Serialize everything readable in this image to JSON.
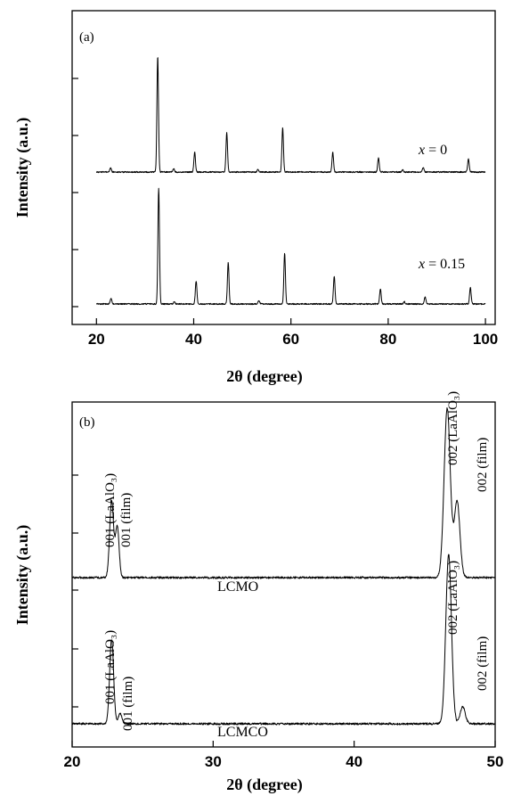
{
  "chart_data": [
    {
      "panel_label": "(a)",
      "type": "line",
      "xlabel": "2θ (degree)",
      "ylabel": "Intensity (a.u.)",
      "xlim": [
        15,
        102
      ],
      "x_ticks": [
        "20",
        "40",
        "60",
        "80",
        "100"
      ],
      "series": [
        {
          "name": "x = 0",
          "label_prefix": "x",
          "label_value": " = 0",
          "peaks_2theta": [
            22.9,
            32.6,
            35.9,
            40.2,
            46.8,
            53.2,
            58.3,
            68.6,
            78.0,
            83.0,
            87.2,
            96.5
          ],
          "peaks_rel_intensity": [
            4,
            100,
            3,
            17,
            34,
            2,
            38,
            17,
            12,
            2,
            4,
            11
          ]
        },
        {
          "name": "x = 0.15",
          "label_prefix": "x",
          "label_value": " = 0.15",
          "peaks_2theta": [
            23.0,
            32.8,
            36.0,
            40.5,
            47.1,
            53.4,
            58.7,
            68.9,
            78.4,
            83.3,
            87.6,
            96.9
          ],
          "peaks_rel_intensity": [
            5,
            100,
            2,
            20,
            36,
            3,
            44,
            24,
            13,
            2,
            6,
            14
          ]
        }
      ]
    },
    {
      "panel_label": "(b)",
      "type": "line",
      "xlabel": "2θ (degree)",
      "ylabel": "Intensity (a.u.)",
      "xlim": [
        20,
        50
      ],
      "x_ticks": [
        "20",
        "30",
        "40",
        "50"
      ],
      "series": [
        {
          "name": "LCMO",
          "peaks_2theta": [
            22.8,
            23.2,
            46.6,
            47.3
          ],
          "peaks_rel_intensity": [
            45,
            30,
            100,
            45
          ]
        },
        {
          "name": "LCMCO",
          "peaks_2theta": [
            22.8,
            23.4,
            46.7,
            47.7
          ],
          "peaks_rel_intensity": [
            50,
            6,
            100,
            10
          ]
        }
      ],
      "annotations": [
        "001 (LaAlO₃)",
        "001 (film)",
        "002 (LaAlO₃)",
        "002 (film)",
        "001 (LaAlO₃)",
        "001 (film)",
        "002 (LaAlO₃)",
        "002 (film)"
      ]
    }
  ]
}
